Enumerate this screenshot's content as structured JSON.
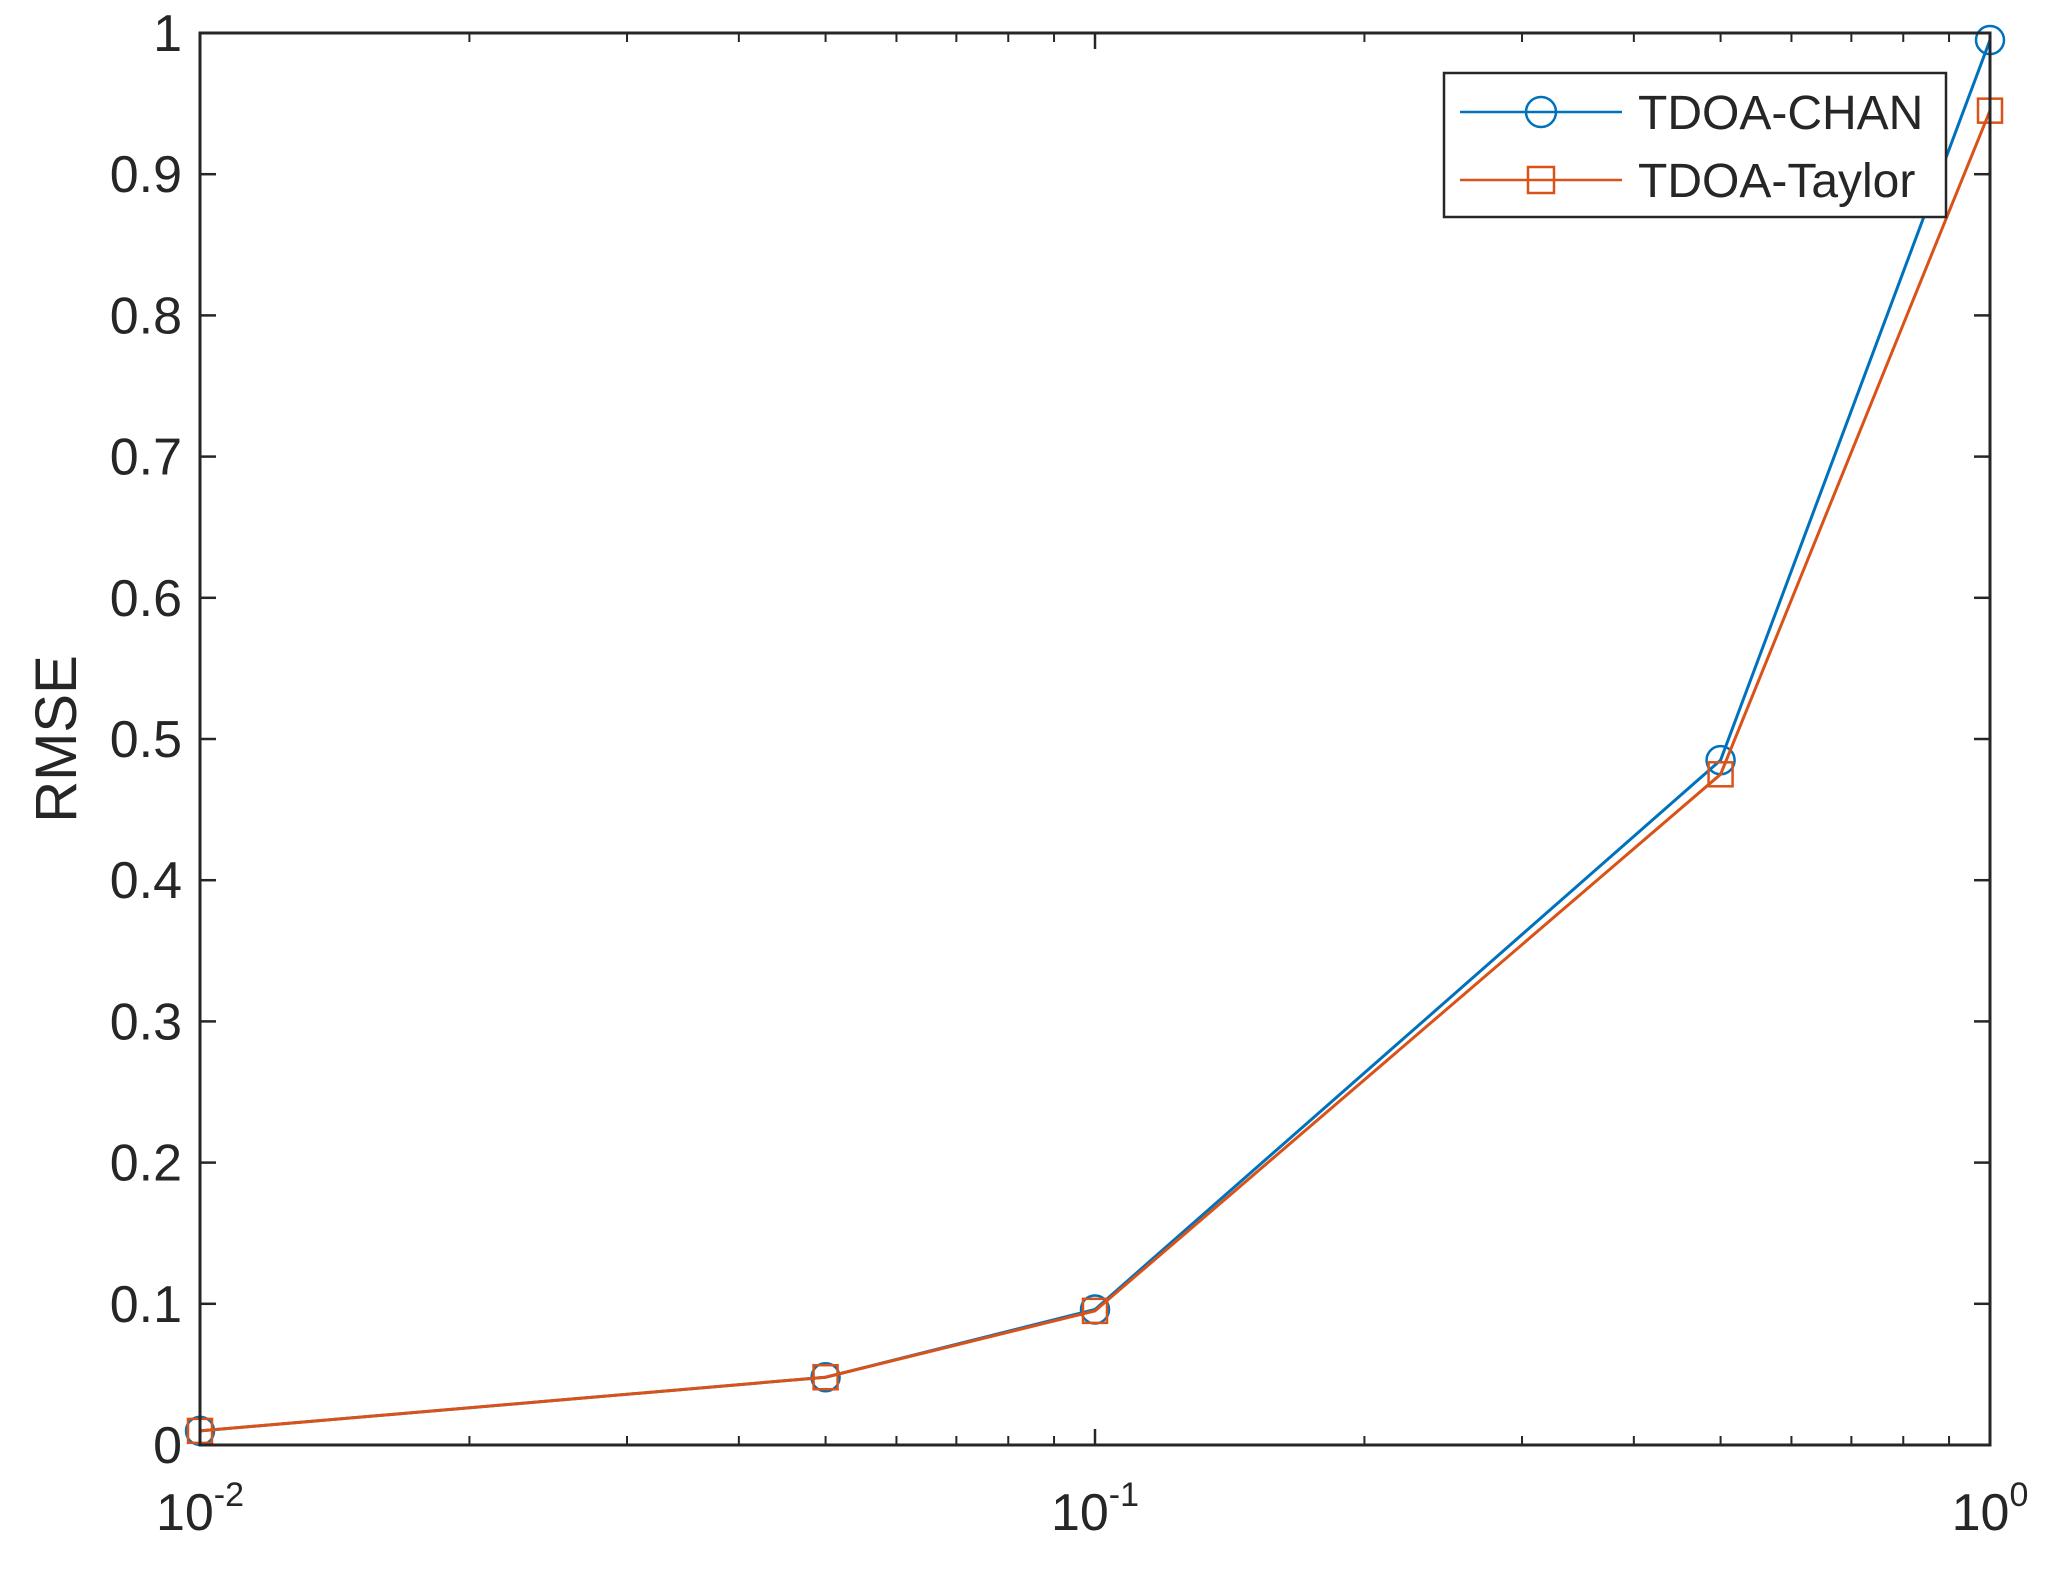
{
  "chart_data": {
    "type": "line",
    "title": "",
    "xlabel": "",
    "ylabel": "RMSE",
    "xscale": "log",
    "xlim": [
      0.01,
      1
    ],
    "ylim": [
      0,
      1
    ],
    "x_ticks": [
      {
        "value": 0.01,
        "base": "10",
        "exp": "-2"
      },
      {
        "value": 0.1,
        "base": "10",
        "exp": "-1"
      },
      {
        "value": 1,
        "base": "10",
        "exp": "0"
      }
    ],
    "y_ticks": [
      {
        "value": 0,
        "label": "0"
      },
      {
        "value": 0.1,
        "label": "0.1"
      },
      {
        "value": 0.2,
        "label": "0.2"
      },
      {
        "value": 0.3,
        "label": "0.3"
      },
      {
        "value": 0.4,
        "label": "0.4"
      },
      {
        "value": 0.5,
        "label": "0.5"
      },
      {
        "value": 0.6,
        "label": "0.6"
      },
      {
        "value": 0.7,
        "label": "0.7"
      },
      {
        "value": 0.8,
        "label": "0.8"
      },
      {
        "value": 0.9,
        "label": "0.9"
      },
      {
        "value": 1,
        "label": "1"
      }
    ],
    "grid": false,
    "legend_position": "top-right",
    "series": [
      {
        "name": "TDOA-CHAN",
        "color": "#0072BD",
        "marker": "circle",
        "x": [
          0.01,
          0.05,
          0.1,
          0.5,
          1
        ],
        "y": [
          0.01,
          0.048,
          0.096,
          0.485,
          0.995
        ]
      },
      {
        "name": "TDOA-Taylor",
        "color": "#D95319",
        "marker": "square",
        "x": [
          0.01,
          0.05,
          0.1,
          0.5,
          1
        ],
        "y": [
          0.01,
          0.048,
          0.095,
          0.475,
          0.945
        ]
      }
    ]
  }
}
